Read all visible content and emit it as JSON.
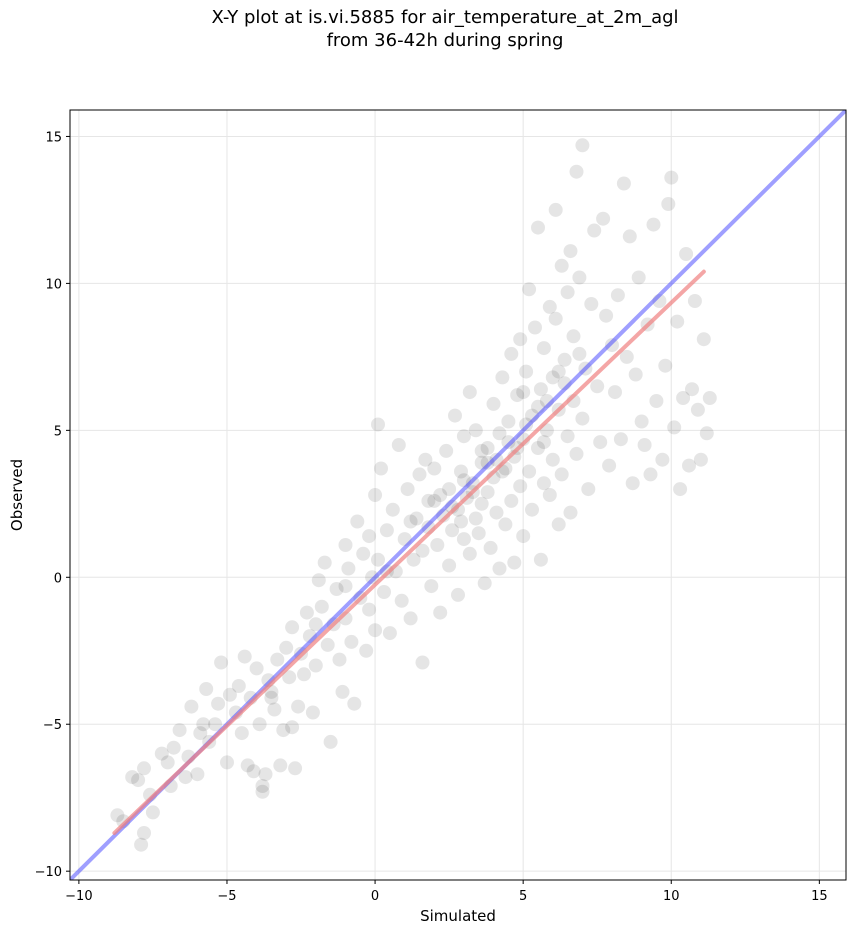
{
  "chart_data": {
    "type": "scatter",
    "title_line1": "X-Y plot at is.vi.5885 for air_temperature_at_2m_agl",
    "title_line2": "from 36-42h during spring",
    "xlabel": "Simulated",
    "ylabel": "Observed",
    "xlim": [
      -10.3,
      15.9
    ],
    "ylim": [
      -10.3,
      15.9
    ],
    "x_ticks": [
      -10,
      -5,
      0,
      5,
      10,
      15
    ],
    "y_ticks": [
      -10,
      -5,
      0,
      5,
      10,
      15
    ],
    "x_tick_labels": [
      "−10",
      "−5",
      "0",
      "5",
      "10",
      "15"
    ],
    "y_tick_labels": [
      "−10",
      "−5",
      "0",
      "5",
      "10",
      "15"
    ],
    "grid": true,
    "colors": {
      "points": "#000000",
      "fit_line": "#f08080",
      "identity_line": "#4040ff"
    },
    "identity_line": {
      "x": [
        -10.3,
        15.9
      ],
      "y": [
        -10.3,
        15.9
      ]
    },
    "fit_line": {
      "x": [
        -8.8,
        11.1
      ],
      "y": [
        -8.7,
        10.4
      ]
    },
    "points": [
      [
        -8.7,
        -8.1
      ],
      [
        -8.5,
        -8.3
      ],
      [
        -8.2,
        -6.8
      ],
      [
        -8.0,
        -6.9
      ],
      [
        -7.9,
        -9.1
      ],
      [
        -7.8,
        -8.7
      ],
      [
        -7.8,
        -6.5
      ],
      [
        -7.6,
        -7.4
      ],
      [
        -7.5,
        -8.0
      ],
      [
        -7.2,
        -6.0
      ],
      [
        -7.0,
        -6.3
      ],
      [
        -6.9,
        -7.1
      ],
      [
        -6.6,
        -5.2
      ],
      [
        -6.4,
        -6.8
      ],
      [
        -6.3,
        -6.1
      ],
      [
        -6.2,
        -4.4
      ],
      [
        -6.0,
        -6.7
      ],
      [
        -5.8,
        -5.0
      ],
      [
        -5.7,
        -3.8
      ],
      [
        -5.6,
        -5.6
      ],
      [
        -5.4,
        -5.0
      ],
      [
        -5.3,
        -4.3
      ],
      [
        -5.2,
        -2.9
      ],
      [
        -5.0,
        -6.3
      ],
      [
        -4.9,
        -4.0
      ],
      [
        -4.7,
        -4.6
      ],
      [
        -4.6,
        -3.7
      ],
      [
        -4.5,
        -5.3
      ],
      [
        -4.4,
        -2.7
      ],
      [
        -4.3,
        -6.4
      ],
      [
        -4.2,
        -4.1
      ],
      [
        -4.1,
        -6.6
      ],
      [
        -4.0,
        -3.1
      ],
      [
        -3.9,
        -5.0
      ],
      [
        -3.8,
        -7.1
      ],
      [
        -3.8,
        -7.3
      ],
      [
        -3.7,
        -6.7
      ],
      [
        -3.6,
        -3.5
      ],
      [
        -3.5,
        -3.9
      ],
      [
        -3.4,
        -4.5
      ],
      [
        -3.3,
        -2.8
      ],
      [
        -3.2,
        -6.4
      ],
      [
        -3.1,
        -5.2
      ],
      [
        -3.0,
        -2.4
      ],
      [
        -2.9,
        -3.4
      ],
      [
        -2.8,
        -1.7
      ],
      [
        -2.8,
        -5.1
      ],
      [
        -2.7,
        -6.5
      ],
      [
        -2.6,
        -4.4
      ],
      [
        -2.5,
        -2.6
      ],
      [
        -2.4,
        -3.3
      ],
      [
        -2.3,
        -1.2
      ],
      [
        -2.2,
        -2.0
      ],
      [
        -2.1,
        -4.6
      ],
      [
        -2.0,
        -3.0
      ],
      [
        -1.9,
        -0.1
      ],
      [
        -1.8,
        -1.0
      ],
      [
        -1.7,
        0.5
      ],
      [
        -1.6,
        -2.3
      ],
      [
        -1.5,
        -5.6
      ],
      [
        -1.4,
        -1.6
      ],
      [
        -1.3,
        -0.4
      ],
      [
        -1.2,
        -2.8
      ],
      [
        -1.1,
        -3.9
      ],
      [
        -1.0,
        1.1
      ],
      [
        -1.0,
        -1.4
      ],
      [
        -0.9,
        0.3
      ],
      [
        -0.8,
        -2.2
      ],
      [
        -0.7,
        -4.3
      ],
      [
        -0.6,
        1.9
      ],
      [
        -0.5,
        -0.7
      ],
      [
        -0.4,
        0.8
      ],
      [
        -0.3,
        -2.5
      ],
      [
        -0.2,
        1.4
      ],
      [
        -0.2,
        -1.1
      ],
      [
        -0.1,
        0.0
      ],
      [
        0.0,
        -1.8
      ],
      [
        0.0,
        2.8
      ],
      [
        0.1,
        5.2
      ],
      [
        0.1,
        0.6
      ],
      [
        0.2,
        3.7
      ],
      [
        0.3,
        -0.5
      ],
      [
        0.4,
        1.6
      ],
      [
        0.5,
        -1.9
      ],
      [
        0.6,
        2.3
      ],
      [
        0.7,
        0.2
      ],
      [
        0.8,
        4.5
      ],
      [
        0.9,
        -0.8
      ],
      [
        1.0,
        1.3
      ],
      [
        1.1,
        3.0
      ],
      [
        1.2,
        -1.4
      ],
      [
        1.3,
        0.6
      ],
      [
        1.4,
        2.0
      ],
      [
        1.5,
        3.5
      ],
      [
        1.6,
        -2.9
      ],
      [
        1.6,
        0.9
      ],
      [
        1.7,
        4.0
      ],
      [
        1.8,
        1.7
      ],
      [
        1.9,
        -0.3
      ],
      [
        2.0,
        2.6
      ],
      [
        2.0,
        3.7
      ],
      [
        2.1,
        1.1
      ],
      [
        2.2,
        -1.2
      ],
      [
        2.3,
        2.1
      ],
      [
        2.4,
        4.3
      ],
      [
        2.5,
        0.4
      ],
      [
        2.5,
        3.0
      ],
      [
        2.6,
        1.6
      ],
      [
        2.7,
        5.5
      ],
      [
        2.8,
        2.3
      ],
      [
        2.8,
        -0.6
      ],
      [
        2.9,
        3.6
      ],
      [
        3.0,
        1.3
      ],
      [
        3.0,
        4.8
      ],
      [
        3.1,
        2.7
      ],
      [
        3.2,
        6.3
      ],
      [
        3.2,
        0.8
      ],
      [
        3.3,
        3.2
      ],
      [
        3.4,
        2.0
      ],
      [
        3.4,
        5.0
      ],
      [
        3.5,
        1.5
      ],
      [
        3.6,
        3.9
      ],
      [
        3.6,
        2.5
      ],
      [
        3.7,
        -0.2
      ],
      [
        3.8,
        4.4
      ],
      [
        3.8,
        2.9
      ],
      [
        3.9,
        1.0
      ],
      [
        4.0,
        5.9
      ],
      [
        4.0,
        3.4
      ],
      [
        4.1,
        2.2
      ],
      [
        4.2,
        4.9
      ],
      [
        4.2,
        0.3
      ],
      [
        4.3,
        6.8
      ],
      [
        4.4,
        3.7
      ],
      [
        4.4,
        1.8
      ],
      [
        4.5,
        5.3
      ],
      [
        4.6,
        2.6
      ],
      [
        4.6,
        7.6
      ],
      [
        4.7,
        4.1
      ],
      [
        4.7,
        0.5
      ],
      [
        4.8,
        6.2
      ],
      [
        4.9,
        3.1
      ],
      [
        4.9,
        8.1
      ],
      [
        5.0,
        4.7
      ],
      [
        5.0,
        1.4
      ],
      [
        5.1,
        7.0
      ],
      [
        5.2,
        3.6
      ],
      [
        5.2,
        9.8
      ],
      [
        5.3,
        5.5
      ],
      [
        5.3,
        2.3
      ],
      [
        5.4,
        8.5
      ],
      [
        5.5,
        4.4
      ],
      [
        5.5,
        11.9
      ],
      [
        5.6,
        6.4
      ],
      [
        5.6,
        0.6
      ],
      [
        5.7,
        3.2
      ],
      [
        5.7,
        7.8
      ],
      [
        5.8,
        5.0
      ],
      [
        5.9,
        9.2
      ],
      [
        5.9,
        2.8
      ],
      [
        6.0,
        6.8
      ],
      [
        6.0,
        4.0
      ],
      [
        6.1,
        12.5
      ],
      [
        6.1,
        8.8
      ],
      [
        6.2,
        1.8
      ],
      [
        6.2,
        5.7
      ],
      [
        6.3,
        10.6
      ],
      [
        6.3,
        3.5
      ],
      [
        6.4,
        7.4
      ],
      [
        6.5,
        9.7
      ],
      [
        6.5,
        4.8
      ],
      [
        6.6,
        11.1
      ],
      [
        6.6,
        2.2
      ],
      [
        6.7,
        6.0
      ],
      [
        6.7,
        8.2
      ],
      [
        6.8,
        13.8
      ],
      [
        6.8,
        4.2
      ],
      [
        6.9,
        10.2
      ],
      [
        7.0,
        5.4
      ],
      [
        7.0,
        14.7
      ],
      [
        7.1,
        7.1
      ],
      [
        7.2,
        3.0
      ],
      [
        7.3,
        9.3
      ],
      [
        7.4,
        11.8
      ],
      [
        7.5,
        6.5
      ],
      [
        7.6,
        4.6
      ],
      [
        7.7,
        12.2
      ],
      [
        7.8,
        8.9
      ],
      [
        7.9,
        3.8
      ],
      [
        8.0,
        7.9
      ],
      [
        8.1,
        6.3
      ],
      [
        8.2,
        9.6
      ],
      [
        8.3,
        4.7
      ],
      [
        8.4,
        13.4
      ],
      [
        8.5,
        7.5
      ],
      [
        8.6,
        11.6
      ],
      [
        8.7,
        3.2
      ],
      [
        8.8,
        6.9
      ],
      [
        8.9,
        10.2
      ],
      [
        9.0,
        5.3
      ],
      [
        9.1,
        4.5
      ],
      [
        9.2,
        8.6
      ],
      [
        9.3,
        3.5
      ],
      [
        9.4,
        12.0
      ],
      [
        9.5,
        6.0
      ],
      [
        9.6,
        9.4
      ],
      [
        9.7,
        4.0
      ],
      [
        9.8,
        7.2
      ],
      [
        9.9,
        12.7
      ],
      [
        10.0,
        13.6
      ],
      [
        10.1,
        5.1
      ],
      [
        10.2,
        8.7
      ],
      [
        10.3,
        3.0
      ],
      [
        10.4,
        6.1
      ],
      [
        10.5,
        11.0
      ],
      [
        10.6,
        3.8
      ],
      [
        10.7,
        6.4
      ],
      [
        10.8,
        9.4
      ],
      [
        10.9,
        5.7
      ],
      [
        11.0,
        4.0
      ],
      [
        11.1,
        8.1
      ],
      [
        11.2,
        4.9
      ],
      [
        11.3,
        6.1
      ],
      [
        -6.8,
        -5.8
      ],
      [
        -5.9,
        -5.3
      ],
      [
        -3.5,
        -4.1
      ],
      [
        -2.0,
        -1.6
      ],
      [
        -1.0,
        -0.3
      ],
      [
        0.4,
        0.2
      ],
      [
        1.2,
        1.9
      ],
      [
        2.2,
        2.8
      ],
      [
        3.0,
        3.3
      ],
      [
        3.8,
        3.9
      ],
      [
        4.5,
        4.6
      ],
      [
        5.1,
        5.2
      ],
      [
        5.8,
        6.0
      ],
      [
        6.4,
        6.6
      ],
      [
        6.9,
        7.6
      ],
      [
        2.6,
        2.4
      ],
      [
        3.3,
        2.9
      ],
      [
        4.1,
        4.0
      ],
      [
        4.8,
        4.4
      ],
      [
        5.5,
        5.8
      ],
      [
        6.2,
        7.0
      ],
      [
        3.6,
        4.3
      ],
      [
        4.3,
        3.6
      ],
      [
        5.0,
        6.3
      ],
      [
        2.9,
        1.9
      ],
      [
        1.8,
        2.6
      ],
      [
        5.7,
        4.6
      ]
    ]
  }
}
